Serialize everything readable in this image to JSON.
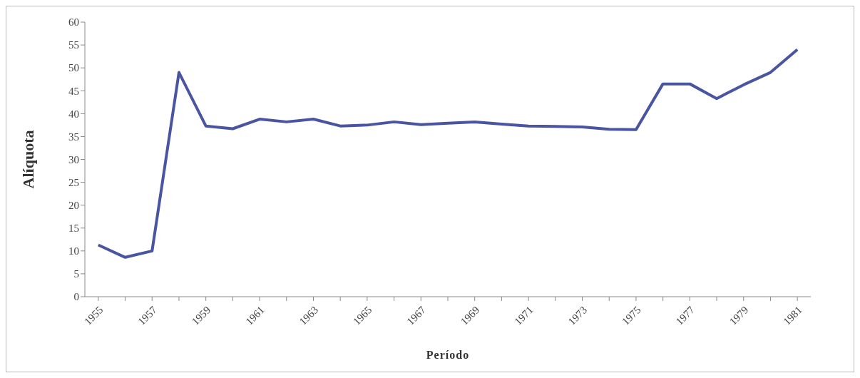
{
  "chart_data": {
    "type": "line",
    "xlabel": "Período",
    "ylabel": "Alíquota",
    "categories": [
      "1955",
      null,
      "1957",
      null,
      "1959",
      null,
      "1961",
      null,
      "1963",
      null,
      "1965",
      null,
      "1967",
      null,
      "1969",
      null,
      "1971",
      null,
      "1973",
      null,
      "1975",
      null,
      "1977",
      null,
      "1979",
      null,
      "1981"
    ],
    "series": [
      {
        "color": "#4a55a2",
        "values": [
          11.3,
          8.6,
          10,
          49,
          37.3,
          36.7,
          38.8,
          38.2,
          38.8,
          37.3,
          37.5,
          38.2,
          37.6,
          37.9,
          38.2,
          37.7,
          37.3,
          37.2,
          37.1,
          36.6,
          36.5,
          46.5,
          46.5,
          43.3,
          46.3,
          49,
          54
        ]
      }
    ],
    "ylim": [
      0,
      60
    ],
    "yticks": [
      0,
      5,
      10,
      15,
      20,
      25,
      30,
      35,
      40,
      45,
      50,
      55,
      60
    ],
    "grid": false,
    "legend": false,
    "marker": "none",
    "line_style": "solid"
  }
}
